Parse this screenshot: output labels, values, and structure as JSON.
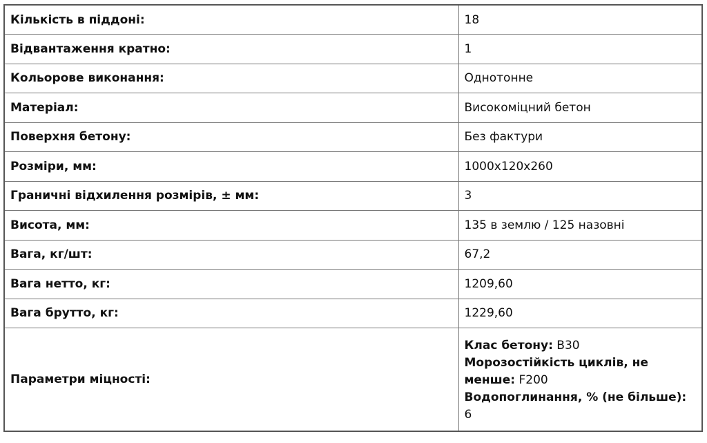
{
  "rows": [
    {
      "label": "Кількість в піддоні:",
      "value": "18"
    },
    {
      "label": "Відвантаження кратно:",
      "value": "1"
    },
    {
      "label": "Кольорове виконання:",
      "value": "Однотонне"
    },
    {
      "label": "Матеріал:",
      "value": "Високоміцний бетон"
    },
    {
      "label": "Поверхня бетону:",
      "value": "Без фактури"
    },
    {
      "label": "Розміри, мм:",
      "value": "1000x120x260"
    },
    {
      "label": "Граничні відхилення розмірів, ± мм:",
      "value": "3"
    },
    {
      "label": "Висота, мм:",
      "value": "135 в землю / 125 назовні"
    },
    {
      "label": "Вага, кг/шт:",
      "value": "67,2"
    },
    {
      "label": "Вага нетто, кг:",
      "value": "1209,60"
    },
    {
      "label": "Вага брутто, кг:",
      "value": "1229,60"
    }
  ],
  "strength": {
    "label": "Параметри міцності:",
    "items": [
      {
        "name": "Клас бетону:",
        "value": "B30"
      },
      {
        "name": "Морозостійкість циклів, не менше:",
        "value": "F200"
      },
      {
        "name": "Водопоглинання, % (не більше):",
        "value": "6"
      }
    ]
  }
}
